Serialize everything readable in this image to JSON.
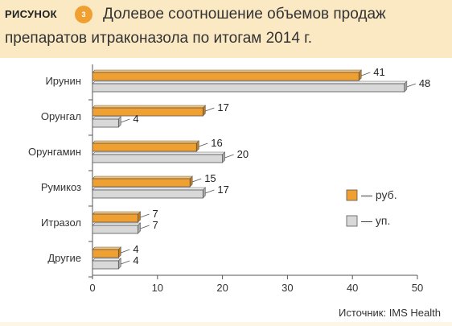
{
  "figure": {
    "label": "РИСУНОК",
    "number": "3",
    "title_line1": "Долевое соотношение объемов продаж",
    "title_line2": "препаратов итраконазола по итогам 2014 г."
  },
  "source": "Источник: IMS Health",
  "colors": {
    "rub": "#f0a030",
    "up": "#d8d8d8",
    "header_bg": "#fbe9c3"
  },
  "chart_data": {
    "type": "bar",
    "orientation": "horizontal",
    "categories": [
      "Ирунин",
      "Орунгал",
      "Орунгамин",
      "Румикоз",
      "Итразол",
      "Другие"
    ],
    "series": [
      {
        "name": "— руб.",
        "values": [
          41,
          17,
          16,
          15,
          7,
          4
        ]
      },
      {
        "name": "— уп.",
        "values": [
          48,
          4,
          20,
          17,
          7,
          4
        ]
      }
    ],
    "xlim": [
      0,
      50
    ],
    "xticks": [
      0,
      10,
      20,
      30,
      40,
      50
    ],
    "grid": false,
    "legend": "right"
  }
}
